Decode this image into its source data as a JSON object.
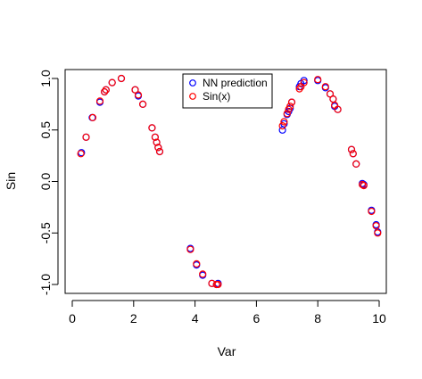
{
  "chart_data": {
    "type": "scatter",
    "title": "",
    "xlabel": "Var",
    "ylabel": "Sin",
    "xlim": [
      0,
      10
    ],
    "ylim": [
      -1.0,
      1.0
    ],
    "xticks": [
      "0",
      "2",
      "4",
      "6",
      "8",
      "10"
    ],
    "yticks": [
      "-1.0",
      "-0.5",
      "0.0",
      "0.5",
      "1.0"
    ],
    "grid": false,
    "legend_position": "top",
    "series": [
      {
        "name": "NN prediction",
        "color": "#0000ff",
        "marker": "open-circle",
        "points": [
          [
            0.3,
            0.28
          ],
          [
            0.45,
            0.43
          ],
          [
            0.65,
            0.62
          ],
          [
            0.9,
            0.77
          ],
          [
            1.05,
            0.87
          ],
          [
            1.1,
            0.89
          ],
          [
            1.3,
            0.96
          ],
          [
            1.6,
            1.0
          ],
          [
            2.05,
            0.89
          ],
          [
            2.15,
            0.83
          ],
          [
            2.3,
            0.75
          ],
          [
            2.6,
            0.52
          ],
          [
            2.7,
            0.43
          ],
          [
            2.75,
            0.38
          ],
          [
            2.8,
            0.33
          ],
          [
            2.85,
            0.29
          ],
          [
            3.85,
            -0.65
          ],
          [
            4.05,
            -0.81
          ],
          [
            4.25,
            -0.91
          ],
          [
            4.55,
            -0.99
          ],
          [
            4.7,
            -1.0
          ],
          [
            4.75,
            -0.99
          ],
          [
            6.85,
            0.5
          ],
          [
            6.9,
            0.56
          ],
          [
            7.0,
            0.65
          ],
          [
            7.05,
            0.68
          ],
          [
            7.1,
            0.71
          ],
          [
            7.15,
            0.77
          ],
          [
            7.4,
            0.92
          ],
          [
            7.45,
            0.95
          ],
          [
            7.55,
            0.98
          ],
          [
            8.0,
            0.98
          ],
          [
            8.25,
            0.91
          ],
          [
            8.4,
            0.85
          ],
          [
            8.5,
            0.8
          ],
          [
            8.55,
            0.73
          ],
          [
            8.65,
            0.7
          ],
          [
            9.1,
            0.31
          ],
          [
            9.15,
            0.27
          ],
          [
            9.25,
            0.17
          ],
          [
            9.45,
            -0.02
          ],
          [
            9.5,
            -0.03
          ],
          [
            9.75,
            -0.28
          ],
          [
            9.9,
            -0.42
          ],
          [
            9.95,
            -0.49
          ]
        ]
      },
      {
        "name": "Sin(x)",
        "color": "#ff0000",
        "marker": "open-circle",
        "points": [
          [
            0.28,
            0.27
          ],
          [
            0.45,
            0.43
          ],
          [
            0.67,
            0.62
          ],
          [
            0.9,
            0.78
          ],
          [
            1.05,
            0.87
          ],
          [
            1.1,
            0.89
          ],
          [
            1.3,
            0.96
          ],
          [
            1.6,
            1.0
          ],
          [
            2.05,
            0.89
          ],
          [
            2.15,
            0.84
          ],
          [
            2.3,
            0.75
          ],
          [
            2.6,
            0.52
          ],
          [
            2.7,
            0.43
          ],
          [
            2.75,
            0.38
          ],
          [
            2.8,
            0.33
          ],
          [
            2.85,
            0.29
          ],
          [
            3.85,
            -0.66
          ],
          [
            4.05,
            -0.8
          ],
          [
            4.25,
            -0.9
          ],
          [
            4.55,
            -0.99
          ],
          [
            4.7,
            -1.0
          ],
          [
            4.75,
            -1.0
          ],
          [
            6.85,
            0.54
          ],
          [
            6.9,
            0.58
          ],
          [
            7.0,
            0.66
          ],
          [
            7.05,
            0.7
          ],
          [
            7.1,
            0.73
          ],
          [
            7.15,
            0.77
          ],
          [
            7.4,
            0.9
          ],
          [
            7.45,
            0.92
          ],
          [
            7.55,
            0.96
          ],
          [
            8.0,
            0.99
          ],
          [
            8.25,
            0.92
          ],
          [
            8.4,
            0.85
          ],
          [
            8.5,
            0.8
          ],
          [
            8.55,
            0.74
          ],
          [
            8.65,
            0.7
          ],
          [
            9.1,
            0.31
          ],
          [
            9.15,
            0.27
          ],
          [
            9.25,
            0.17
          ],
          [
            9.45,
            -0.03
          ],
          [
            9.5,
            -0.04
          ],
          [
            9.75,
            -0.29
          ],
          [
            9.9,
            -0.43
          ],
          [
            9.95,
            -0.5
          ]
        ]
      }
    ]
  }
}
